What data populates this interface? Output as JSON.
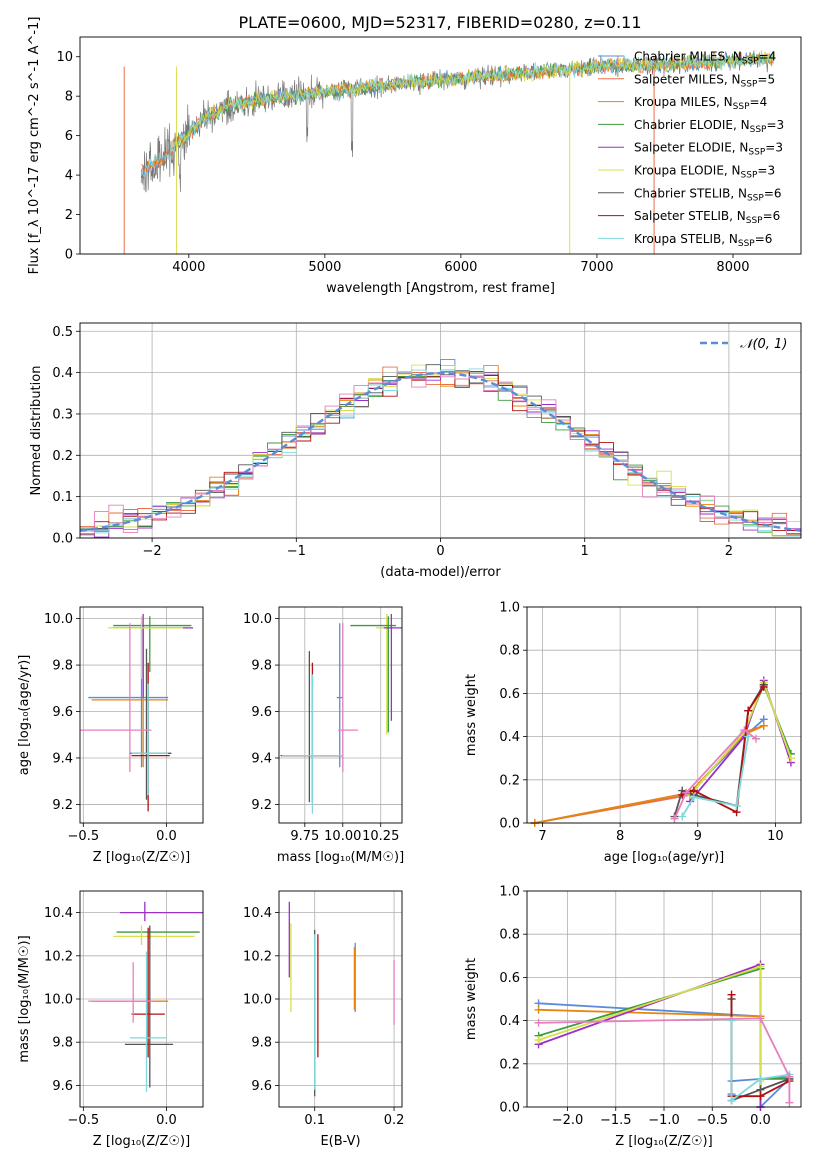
{
  "figure": {
    "title": "PLATE=0600, MJD=52317, FIBERID=0280, z=0.11"
  },
  "colors": {
    "Chabrier MILES": "#5b8bd9",
    "Salpeter MILES": "#e8704a",
    "Kroupa MILES": "#e8860c",
    "Chabrier ELODIE": "#3d9a3d",
    "Salpeter ELODIE": "#9b2fc9",
    "Kroupa ELODIE": "#d6e04a",
    "Chabrier STELIB": "#555555",
    "Salpeter STELIB": "#b01010",
    "Kroupa STELIB": "#7fd8dc",
    "pink": "#e77fbd",
    "normal": "#5b8bd9"
  },
  "chart_data": [
    {
      "id": "spectrum",
      "type": "line",
      "xlabel": "wavelength [Angstrom, rest frame]",
      "ylabel": "Flux [f_λ 10^-17 erg cm^-2 s^-1 A^-1]",
      "xlim": [
        3200,
        8500
      ],
      "ylim": [
        0,
        11
      ],
      "xticks": [
        4000,
        5000,
        6000,
        7000,
        8000
      ],
      "yticks": [
        0,
        2,
        4,
        6,
        8,
        10
      ],
      "legend": {
        "placement": "upper-right"
      },
      "series": [
        {
          "name": "Chabrier MILES",
          "nssp": 4
        },
        {
          "name": "Salpeter MILES",
          "nssp": 5
        },
        {
          "name": "Kroupa MILES",
          "nssp": 4
        },
        {
          "name": "Chabrier ELODIE",
          "nssp": 3
        },
        {
          "name": "Salpeter ELODIE",
          "nssp": 3
        },
        {
          "name": "Kroupa ELODIE",
          "nssp": 3
        },
        {
          "name": "Chabrier STELIB",
          "nssp": 6
        },
        {
          "name": "Salpeter STELIB",
          "nssp": 6
        },
        {
          "name": "Kroupa STELIB",
          "nssp": 6
        }
      ],
      "envelope": {
        "x": [
          3650,
          3800,
          3950,
          4100,
          4300,
          4600,
          5000,
          5500,
          6000,
          6500,
          7000,
          7500,
          8000,
          8300
        ],
        "y": [
          4.2,
          4.8,
          5.8,
          6.8,
          7.6,
          7.9,
          8.2,
          8.6,
          8.9,
          9.2,
          9.5,
          9.6,
          9.8,
          9.9
        ]
      }
    },
    {
      "id": "residuals",
      "type": "line",
      "xlabel": "(data-model)/error",
      "ylabel": "Normed distribution",
      "xlim": [
        -2.5,
        2.5
      ],
      "ylim": [
        0,
        0.52
      ],
      "xticks": [
        -2,
        -1,
        0,
        1,
        2
      ],
      "yticks": [
        0.0,
        0.1,
        0.2,
        0.3,
        0.4,
        0.5
      ],
      "grid": true,
      "legend": {
        "placement": "upper-right",
        "label": "𝒩(0, 1)"
      }
    },
    {
      "id": "age-vs-Z",
      "type": "scatter",
      "xlabel": "Z [log₁₀(Z/Z☉)]",
      "ylabel": "age  [log₁₀(age/yr)]",
      "xlim": [
        -0.52,
        0.22
      ],
      "ylim": [
        9.12,
        10.05
      ],
      "xticks": [
        -0.5,
        0.0
      ],
      "yticks": [
        9.2,
        9.4,
        9.6,
        9.8,
        10.0
      ],
      "grid": true,
      "points": [
        {
          "s": "Chabrier MILES",
          "x": -0.15,
          "y": 9.66,
          "xerr": [
            0.32,
            0.16
          ],
          "yerr": [
            0.3,
            0.32
          ]
        },
        {
          "s": "Kroupa MILES",
          "x": -0.14,
          "y": 9.65,
          "xerr": [
            0.31,
            0.15
          ],
          "yerr": [
            0.29,
            0.31
          ]
        },
        {
          "s": "Chabrier ELODIE",
          "x": -0.1,
          "y": 9.97,
          "xerr": [
            0.22,
            0.25
          ],
          "yerr": [
            0.2,
            0.04
          ]
        },
        {
          "s": "Salpeter ELODIE",
          "x": -0.14,
          "y": 9.96,
          "xerr": [
            0.18,
            0.3
          ],
          "yerr": [
            0.3,
            0.06
          ]
        },
        {
          "s": "Kroupa ELODIE",
          "x": -0.15,
          "y": 9.96,
          "xerr": [
            0.2,
            0.25
          ],
          "yerr": [
            0.22,
            0.05
          ]
        },
        {
          "s": "Chabrier STELIB",
          "x": -0.12,
          "y": 9.42,
          "xerr": [
            0.1,
            0.15
          ],
          "yerr": [
            0.2,
            0.45
          ]
        },
        {
          "s": "Salpeter STELIB",
          "x": -0.11,
          "y": 9.41,
          "xerr": [
            0.1,
            0.13
          ],
          "yerr": [
            0.24,
            0.4
          ]
        },
        {
          "s": "Kroupa STELIB",
          "x": -0.11,
          "y": 9.42,
          "xerr": [
            0.1,
            0.12
          ],
          "yerr": [
            0.18,
            0.3
          ]
        },
        {
          "s": "pink",
          "x": -0.22,
          "y": 9.52,
          "xerr": [
            0.3,
            0.13
          ],
          "yerr": [
            0.18,
            0.46
          ]
        }
      ]
    },
    {
      "id": "age-vs-mass",
      "type": "scatter",
      "xlabel": "mass [log₁₀(M/M☉)]",
      "ylabel": "",
      "xlim": [
        9.58,
        10.39
      ],
      "ylim": [
        9.12,
        10.05
      ],
      "xticks": [
        9.75,
        10.0,
        10.25
      ],
      "xticklabels": [
        "9.75",
        "10.00",
        "10.25"
      ],
      "yticks": [
        9.2,
        9.4,
        9.6,
        9.8,
        10.0
      ],
      "grid": true,
      "points": [
        {
          "s": "Chabrier MILES",
          "x": 9.98,
          "y": 9.66,
          "xerr": [
            0.02,
            0.02
          ],
          "yerr": [
            0.3,
            0.32
          ]
        },
        {
          "s": "Kroupa ELODIE",
          "x": 10.29,
          "y": 9.96,
          "xerr": [
            0.07,
            0.03
          ],
          "yerr": [
            0.46,
            0.06
          ]
        },
        {
          "s": "Chabrier ELODIE",
          "x": 10.3,
          "y": 9.97,
          "xerr": [
            0.25,
            0.05
          ],
          "yerr": [
            0.46,
            0.04
          ]
        },
        {
          "s": "Salpeter ELODIE",
          "x": 10.32,
          "y": 9.96,
          "xerr": [
            0.05,
            0.07
          ],
          "yerr": [
            0.4,
            0.06
          ]
        },
        {
          "s": "Chabrier STELIB",
          "x": 9.78,
          "y": 9.41,
          "xerr": [
            0.19,
            0.21
          ],
          "yerr": [
            0.2,
            0.45
          ]
        },
        {
          "s": "Salpeter STELIB",
          "x": 9.8,
          "y": 9.41,
          "xerr": [
            0.2,
            0.2
          ],
          "yerr": [
            0.2,
            0.4
          ]
        },
        {
          "s": "Kroupa STELIB",
          "x": 9.8,
          "y": 9.41,
          "xerr": [
            0.2,
            0.2
          ],
          "yerr": [
            0.25,
            0.35
          ]
        },
        {
          "s": "pink",
          "x": 10.0,
          "y": 9.52,
          "xerr": [
            0.03,
            0.1
          ],
          "yerr": [
            0.18,
            0.46
          ]
        }
      ]
    },
    {
      "id": "weight-vs-age",
      "type": "line",
      "xlabel": "age  [log₁₀(age/yr)]",
      "ylabel": "mass weight",
      "xlim": [
        6.8,
        10.33
      ],
      "ylim": [
        0,
        1.0
      ],
      "xticks": [
        7,
        8,
        9,
        10
      ],
      "yticks": [
        0.0,
        0.2,
        0.4,
        0.6,
        0.8,
        1.0
      ],
      "grid": true,
      "series": [
        {
          "s": "Chabrier MILES",
          "x": [
            6.9,
            8.9,
            9.6,
            9.85
          ],
          "y": [
            0.0,
            0.14,
            0.4,
            0.48
          ]
        },
        {
          "s": "Salpeter MILES",
          "x": [
            6.9,
            8.9,
            9.6,
            9.85
          ],
          "y": [
            0.0,
            0.13,
            0.42,
            0.45
          ]
        },
        {
          "s": "Kroupa MILES",
          "x": [
            6.9,
            8.9,
            9.6,
            9.85
          ],
          "y": [
            0.0,
            0.14,
            0.41,
            0.45
          ]
        },
        {
          "s": "Chabrier ELODIE",
          "x": [
            8.9,
            9.6,
            9.85,
            10.2
          ],
          "y": [
            0.13,
            0.42,
            0.64,
            0.32
          ]
        },
        {
          "s": "Salpeter ELODIE",
          "x": [
            8.9,
            9.6,
            9.85,
            10.2
          ],
          "y": [
            0.1,
            0.4,
            0.66,
            0.28
          ]
        },
        {
          "s": "Kroupa ELODIE",
          "x": [
            8.9,
            9.6,
            9.85,
            10.2
          ],
          "y": [
            0.13,
            0.42,
            0.65,
            0.3
          ]
        },
        {
          "s": "Chabrier STELIB",
          "x": [
            8.7,
            8.8,
            8.95,
            9.5,
            9.65,
            9.85
          ],
          "y": [
            0.03,
            0.15,
            0.13,
            0.08,
            0.52,
            0.64
          ]
        },
        {
          "s": "Salpeter STELIB",
          "x": [
            8.8,
            8.95,
            9.5,
            9.65,
            9.85
          ],
          "y": [
            0.13,
            0.15,
            0.05,
            0.52,
            0.63
          ]
        },
        {
          "s": "Kroupa STELIB",
          "x": [
            8.8,
            8.95,
            9.5,
            9.65
          ],
          "y": [
            0.03,
            0.12,
            0.08,
            0.4
          ]
        },
        {
          "s": "pink",
          "x": [
            8.7,
            8.85,
            9.6,
            9.75
          ],
          "y": [
            0.02,
            0.14,
            0.43,
            0.39
          ]
        }
      ]
    },
    {
      "id": "mass-vs-Z",
      "type": "scatter",
      "xlabel": "Z [log₁₀(Z/Z☉)]",
      "ylabel": "mass [log₁₀(M/M☉)]",
      "xlim": [
        -0.52,
        0.22
      ],
      "ylim": [
        9.5,
        10.5
      ],
      "xticks": [
        -0.5,
        0.0
      ],
      "yticks": [
        9.6,
        9.8,
        10.0,
        10.2,
        10.4
      ],
      "grid": true,
      "points": [
        {
          "s": "Chabrier MILES",
          "x": -0.14,
          "y": 9.99,
          "xerr": [
            0.31,
            0.15
          ],
          "yerr": [
            0.0,
            0.0
          ]
        },
        {
          "s": "Kroupa MILES",
          "x": -0.14,
          "y": 9.99,
          "xerr": [
            0.3,
            0.15
          ],
          "yerr": [
            0.0,
            0.0
          ]
        },
        {
          "s": "Chabrier ELODIE",
          "x": -0.1,
          "y": 10.31,
          "xerr": [
            0.2,
            0.3
          ],
          "yerr": [
            0.03,
            0.02
          ]
        },
        {
          "s": "Salpeter ELODIE",
          "x": -0.13,
          "y": 10.4,
          "xerr": [
            0.15,
            0.35
          ],
          "yerr": [
            0.04,
            0.05
          ]
        },
        {
          "s": "Kroupa ELODIE",
          "x": -0.15,
          "y": 10.29,
          "xerr": [
            0.17,
            0.32
          ],
          "yerr": [
            0.04,
            0.05
          ]
        },
        {
          "s": "Chabrier STELIB",
          "x": -0.1,
          "y": 9.79,
          "xerr": [
            0.15,
            0.14
          ],
          "yerr": [
            0.2,
            0.55
          ]
        },
        {
          "s": "Salpeter STELIB",
          "x": -0.11,
          "y": 9.93,
          "xerr": [
            0.1,
            0.1
          ],
          "yerr": [
            0.2,
            0.4
          ]
        },
        {
          "s": "Kroupa STELIB",
          "x": -0.12,
          "y": 9.82,
          "xerr": [
            0.1,
            0.12
          ],
          "yerr": [
            0.25,
            0.4
          ]
        },
        {
          "s": "pink",
          "x": -0.2,
          "y": 9.99,
          "xerr": [
            0.27,
            0.12
          ],
          "yerr": [
            0.1,
            0.18
          ]
        }
      ]
    },
    {
      "id": "mass-vs-EBV",
      "type": "scatter",
      "xlabel": "E(B-V)",
      "ylabel": "",
      "xlim": [
        0.055,
        0.21
      ],
      "ylim": [
        9.5,
        10.5
      ],
      "xticks": [
        0.1,
        0.2
      ],
      "yticks": [
        9.6,
        9.8,
        10.0,
        10.2,
        10.4
      ],
      "grid": true,
      "points": [
        {
          "s": "Salpeter ELODIE",
          "x": 0.068,
          "y": 10.3,
          "yerr": [
            0.2,
            0.15
          ]
        },
        {
          "s": "Kroupa ELODIE",
          "x": 0.07,
          "y": 10.12,
          "yerr": [
            0.18,
            0.23
          ]
        },
        {
          "s": "Chabrier STELIB",
          "x": 0.1,
          "y": 9.8,
          "yerr": [
            0.25,
            0.52
          ]
        },
        {
          "s": "Kroupa STELIB",
          "x": 0.1,
          "y": 9.8,
          "yerr": [
            0.22,
            0.5
          ]
        },
        {
          "s": "Salpeter STELIB",
          "x": 0.104,
          "y": 10.0,
          "yerr": [
            0.27,
            0.3
          ]
        },
        {
          "s": "Chabrier MILES",
          "x": 0.151,
          "y": 10.08,
          "yerr": [
            0.14,
            0.18
          ]
        },
        {
          "s": "Kroupa MILES",
          "x": 0.15,
          "y": 10.08,
          "yerr": [
            0.13,
            0.16
          ]
        },
        {
          "s": "pink",
          "x": 0.2,
          "y": 10.02,
          "yerr": [
            0.14,
            0.16
          ]
        }
      ]
    },
    {
      "id": "weight-vs-Z",
      "type": "line",
      "xlabel": "Z [log₁₀(Z/Z☉)]",
      "ylabel": "mass weight",
      "xlim": [
        -2.42,
        0.42
      ],
      "ylim": [
        0,
        1.0
      ],
      "xticks": [
        -2.0,
        -1.5,
        -1.0,
        -0.5,
        0.0
      ],
      "yticks": [
        0.0,
        0.2,
        0.4,
        0.6,
        0.8,
        1.0
      ],
      "grid": true,
      "series": [
        {
          "s": "Chabrier MILES",
          "x": [
            -2.3,
            0.0,
            0.0,
            0.3,
            0.3,
            -0.3,
            -0.3
          ],
          "y": [
            0.48,
            0.42,
            0.0,
            0.13,
            0.14,
            0.12,
            0.06
          ]
        },
        {
          "s": "Kroupa MILES",
          "x": [
            -2.3,
            0.0
          ],
          "y": [
            0.45,
            0.42
          ]
        },
        {
          "s": "Chabrier ELODIE",
          "x": [
            -2.3,
            0.0,
            0.0,
            0.3
          ],
          "y": [
            0.33,
            0.64,
            0.13,
            0.13
          ]
        },
        {
          "s": "Salpeter ELODIE",
          "x": [
            -2.3,
            0.0,
            0.0
          ],
          "y": [
            0.29,
            0.66,
            0.0
          ]
        },
        {
          "s": "Kroupa ELODIE",
          "x": [
            -2.3,
            0.0,
            0.0
          ],
          "y": [
            0.31,
            0.65,
            0.12
          ]
        },
        {
          "s": "Chabrier STELIB",
          "x": [
            -0.3,
            -0.3,
            0.0,
            0.3
          ],
          "y": [
            0.5,
            0.03,
            0.08,
            0.13
          ]
        },
        {
          "s": "Salpeter STELIB",
          "x": [
            -0.3,
            -0.3,
            0.0,
            0.3
          ],
          "y": [
            0.52,
            0.05,
            0.05,
            0.12
          ]
        },
        {
          "s": "Kroupa STELIB",
          "x": [
            -0.3,
            -0.3,
            0.0,
            0.3
          ],
          "y": [
            0.4,
            0.03,
            0.13,
            0.15
          ]
        },
        {
          "s": "pink",
          "x": [
            -2.3,
            0.0,
            0.3,
            0.3
          ],
          "y": [
            0.39,
            0.41,
            0.14,
            0.02
          ]
        }
      ]
    }
  ]
}
